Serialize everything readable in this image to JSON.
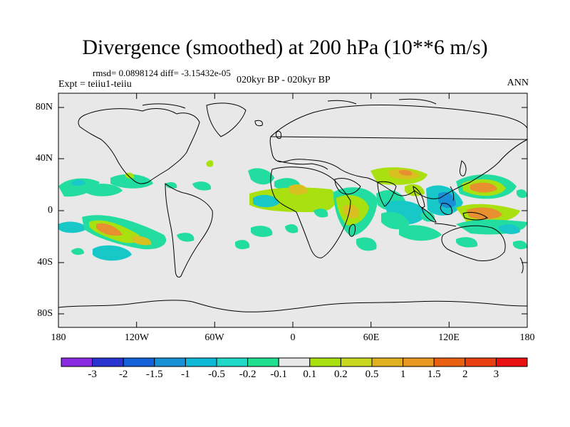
{
  "title": "Divergence (smoothed) at 200 hPa (10**6 m/s)",
  "stats": "rmsd= 0.0898124  diff= -3.15432e-05",
  "experiment": "Expt = teiiu1-teiiu",
  "period": "020kyr BP - 020kyr BP",
  "season": "ANN",
  "y_ticks": [
    "80N",
    "40N",
    "0",
    "40S",
    "80S"
  ],
  "x_ticks": [
    "180",
    "120W",
    "60W",
    "0",
    "60E",
    "120E",
    "180"
  ],
  "colorbar": {
    "labels": [
      "-3",
      "-2",
      "-1.5",
      "-1",
      "-0.5",
      "-0.2",
      "-0.1",
      "0.1",
      "0.2",
      "0.5",
      "1",
      "1.5",
      "2",
      "3"
    ],
    "colors": [
      "#8a2be2",
      "#2a35d0",
      "#1460d8",
      "#1890d8",
      "#10b8d8",
      "#20d8c8",
      "#20e090",
      "#e8e8e8",
      "#a8e010",
      "#c8d820",
      "#e0b020",
      "#e89820",
      "#e86010",
      "#e84010",
      "#e81010"
    ]
  },
  "field_colors": {
    "background": "#e8e8e8",
    "weak_negative": "#22dca0",
    "negative": "#18c8c8",
    "weak_positive": "#a8e010",
    "positive": "#d8c020",
    "strong_positive": "#e89030"
  }
}
